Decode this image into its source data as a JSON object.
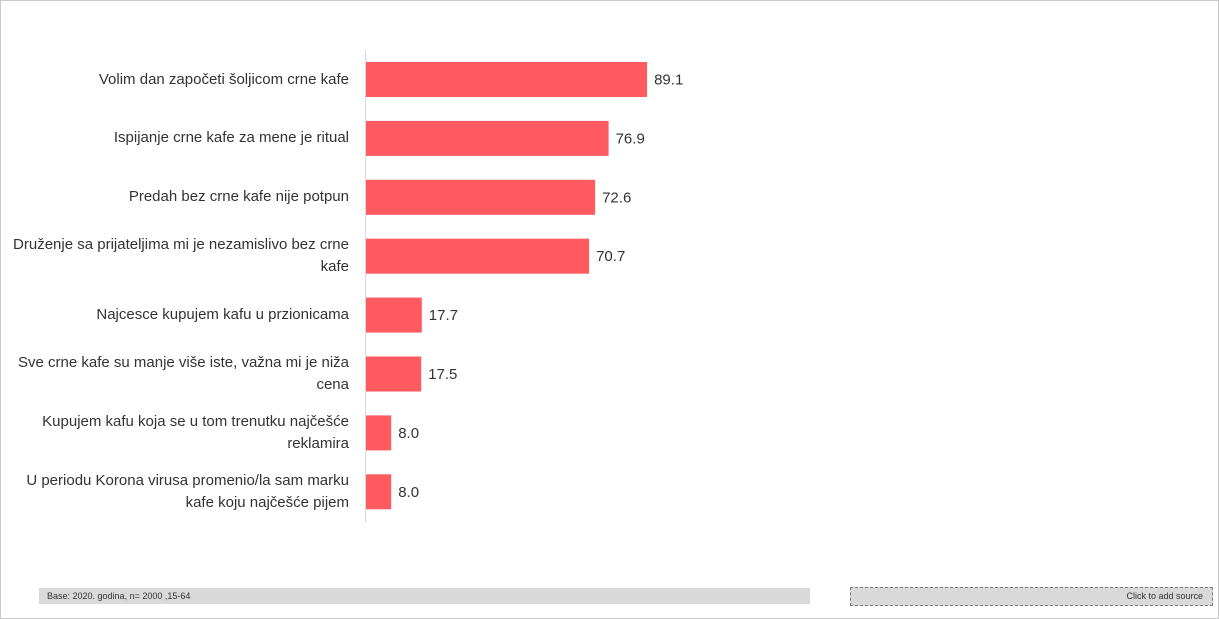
{
  "chart_data": {
    "type": "bar",
    "orientation": "horizontal",
    "categories": [
      "Volim dan započeti šoljicom crne kafe",
      "Ispijanje crne kafe za mene je ritual",
      "Predah bez crne kafe nije potpun",
      "Druženje sa prijateljima mi je nezamislivo bez crne kafe",
      "Najcesce kupujem kafu u przionicama",
      "Sve crne kafe su manje više iste, važna mi je niža cena",
      "Kupujem kafu koja se u tom trenutku najčešće reklamira",
      "U periodu Korona virusa promenio/la sam marku kafe koju najčešće pijem"
    ],
    "values": [
      89.1,
      76.9,
      72.6,
      70.7,
      17.7,
      17.5,
      8.0,
      8.0
    ],
    "value_labels": [
      "89.1",
      "76.9",
      "72.6",
      "70.7",
      "17.7",
      "17.5",
      "8.0",
      "8.0"
    ],
    "bar_color": "#ff5a5f",
    "xlim": [
      0,
      100
    ],
    "grid": false,
    "legend": "none",
    "title": "",
    "xlabel": "",
    "ylabel": ""
  },
  "footer": {
    "base_text": "Base: 2020. godina, n= 2000 ,15-64",
    "source_placeholder": "Click to add source"
  }
}
